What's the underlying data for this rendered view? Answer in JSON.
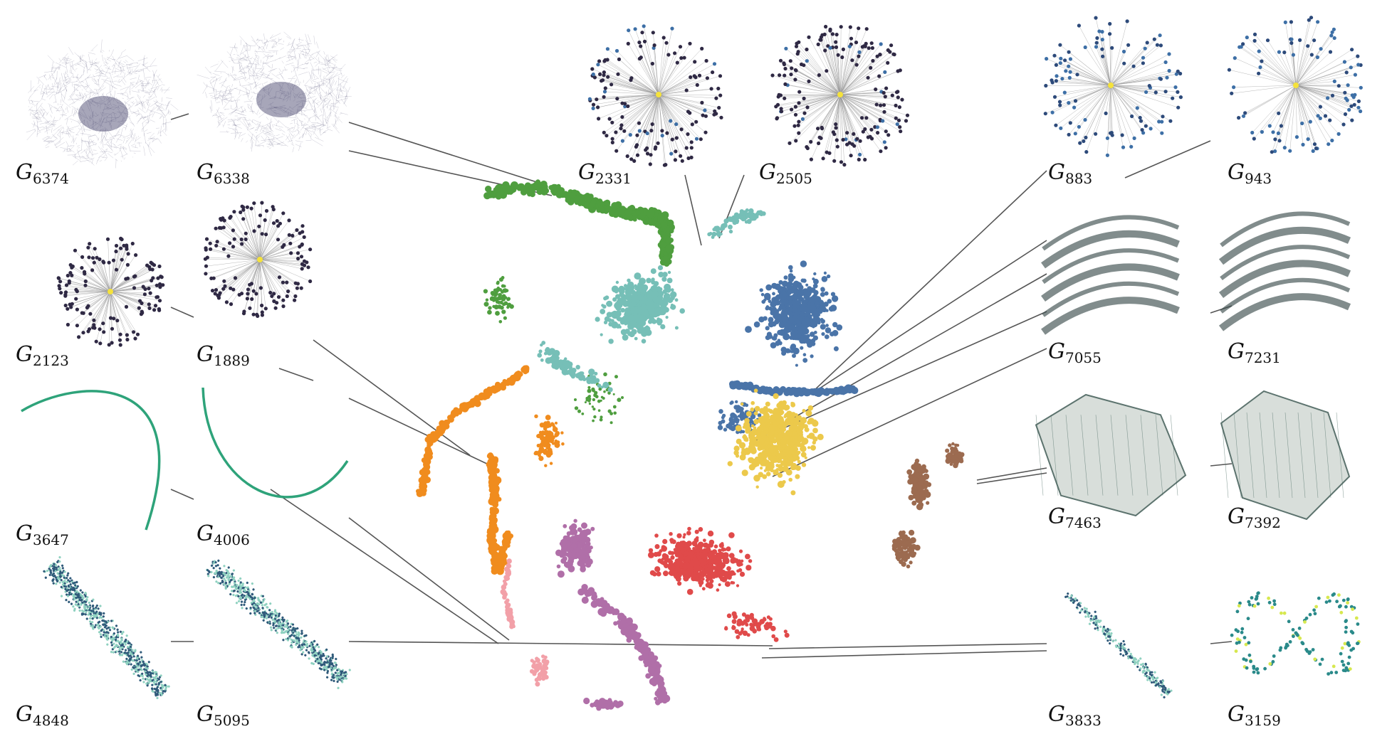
{
  "labels": [
    {
      "letter": "G",
      "sub": "6374"
    },
    {
      "letter": "G",
      "sub": "6338"
    },
    {
      "letter": "G",
      "sub": "2331"
    },
    {
      "letter": "G",
      "sub": "2505"
    },
    {
      "letter": "G",
      "sub": "883"
    },
    {
      "letter": "G",
      "sub": "943"
    },
    {
      "letter": "G",
      "sub": "2123"
    },
    {
      "letter": "G",
      "sub": "1889"
    },
    {
      "letter": "G",
      "sub": "7055"
    },
    {
      "letter": "G",
      "sub": "7231"
    },
    {
      "letter": "G",
      "sub": "3647"
    },
    {
      "letter": "G",
      "sub": "4006"
    },
    {
      "letter": "G",
      "sub": "7463"
    },
    {
      "letter": "G",
      "sub": "7392"
    },
    {
      "letter": "G",
      "sub": "4848"
    },
    {
      "letter": "G",
      "sub": "5095"
    },
    {
      "letter": "G",
      "sub": "3833"
    },
    {
      "letter": "G",
      "sub": "3159"
    }
  ],
  "colors": {
    "green": "#4f9e3f",
    "teal": "#76bfb7",
    "blue": "#4a74a8",
    "yellow": "#ecc94b",
    "orange": "#f08c1e",
    "red": "#e04a4a",
    "purple": "#b06fa8",
    "brown": "#9c6b50",
    "pink": "#f2a0a8",
    "connector": "#555555",
    "node_dark": "#2f2944",
    "node_hub": "#f5e23b",
    "curve": "#2ea37a"
  }
}
